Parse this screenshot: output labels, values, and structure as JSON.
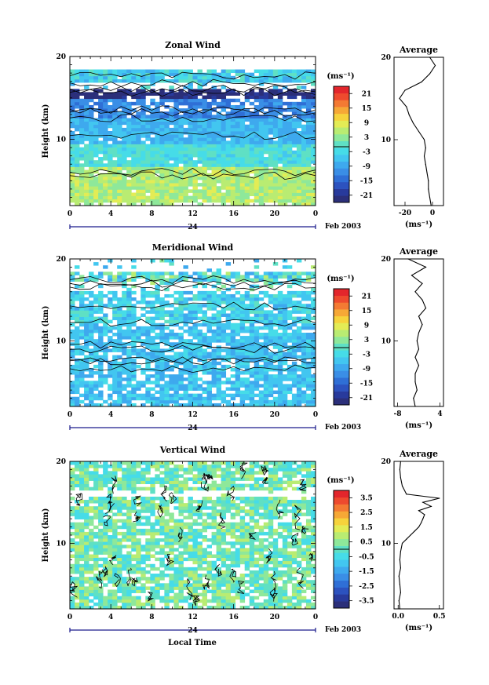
{
  "colors": {
    "scale": [
      "#2b2f7a",
      "#283a9c",
      "#2c52bf",
      "#2f6fd6",
      "#3a8ee6",
      "#3ea9ee",
      "#42c6f0",
      "#46dce8",
      "#5fe0c4",
      "#8ee89a",
      "#b9ec72",
      "#e3ec55",
      "#f6d33c",
      "#f6a836",
      "#f47a33",
      "#ee4a2e",
      "#e3262c"
    ],
    "contour": "#000000",
    "missing": "#ffffff",
    "time_axis": "#1a1a8c"
  },
  "time_axis": {
    "date_text": "Feb 2003",
    "day_label": "24",
    "xlabel": "Local Time"
  },
  "chart_data": [
    {
      "type": "heatmap",
      "title": "Zonal Wind",
      "ylabel": "Height (km)",
      "x": [
        0,
        4,
        8,
        12,
        16,
        20,
        0
      ],
      "xlim": [
        0,
        24
      ],
      "ylim": [
        2,
        20
      ],
      "yticks": [
        10,
        20
      ],
      "colorbar": {
        "unit_label": "(ms⁻¹)",
        "ticks": [
          "21",
          "15",
          "9",
          "3",
          "-3",
          "-9",
          "-15",
          "-21"
        ],
        "range": [
          -24,
          24
        ]
      },
      "profile": {
        "title": "Average",
        "xlabel": "(ms⁻¹)",
        "xticks": [
          "-20",
          "0"
        ],
        "xtick_values": [
          -20,
          0
        ],
        "xlim": [
          -28,
          8
        ],
        "heights": [
          2,
          3,
          4,
          5,
          6,
          7,
          8,
          9,
          10,
          11,
          12,
          13,
          14,
          15,
          16,
          17,
          18,
          19,
          20
        ],
        "values": [
          -1,
          -2,
          -3,
          -3,
          -4,
          -5,
          -6,
          -5,
          -6,
          -10,
          -14,
          -17,
          -19,
          -24,
          -20,
          -8,
          -2,
          2,
          -2
        ]
      }
    },
    {
      "type": "heatmap",
      "title": "Meridional Wind",
      "ylabel": "Height (km)",
      "x": [
        0,
        4,
        8,
        12,
        16,
        20,
        0
      ],
      "xlim": [
        0,
        24
      ],
      "ylim": [
        2,
        20
      ],
      "yticks": [
        10,
        20
      ],
      "colorbar": {
        "unit_label": "(ms⁻¹)",
        "ticks": [
          "21",
          "15",
          "9",
          "3",
          "-3",
          "-9",
          "-15",
          "-21"
        ],
        "range": [
          -24,
          24
        ]
      },
      "profile": {
        "title": "Average",
        "xlabel": "(ms⁻¹)",
        "xticks": [
          "-8",
          "4"
        ],
        "xtick_values": [
          -8,
          4
        ],
        "xlim": [
          -9,
          5
        ],
        "heights": [
          2,
          3,
          4,
          5,
          6,
          7,
          8,
          9,
          10,
          11,
          12,
          13,
          14,
          15,
          16,
          17,
          18,
          19,
          20
        ],
        "values": [
          -3,
          -3.5,
          -2.5,
          -3,
          -3,
          -2,
          -3,
          -2,
          -2.5,
          -2,
          -1,
          -2,
          0,
          -1,
          -3,
          -1,
          -4,
          0,
          -5
        ]
      }
    },
    {
      "type": "heatmap",
      "title": "Vertical Wind",
      "ylabel": "Height (km)",
      "x": [
        0,
        4,
        8,
        12,
        16,
        20,
        0
      ],
      "xlim": [
        0,
        24
      ],
      "ylim": [
        2,
        20
      ],
      "yticks": [
        10,
        20
      ],
      "colorbar": {
        "unit_label": "(ms⁻¹)",
        "ticks": [
          "3.5",
          "2.5",
          "1.5",
          "0.5",
          "-0.5",
          "-1.5",
          "-2.5",
          "-3.5"
        ],
        "range": [
          -4,
          4
        ]
      },
      "profile": {
        "title": "Average",
        "xlabel": "(ms⁻¹)",
        "xticks": [
          "0.0",
          "0.5"
        ],
        "xtick_values": [
          0.0,
          0.5
        ],
        "xlim": [
          -0.05,
          0.55
        ],
        "heights": [
          2,
          3,
          4,
          5,
          6,
          7,
          8,
          9,
          10,
          10.5,
          11,
          11.5,
          12,
          12.5,
          13,
          13.5,
          14,
          14.5,
          15,
          15.5,
          16,
          17,
          18,
          19,
          20
        ],
        "values": [
          0.02,
          0.01,
          0.03,
          0.02,
          0.01,
          0.03,
          0.02,
          0.03,
          0.05,
          0.1,
          0.15,
          0.2,
          0.25,
          0.28,
          0.3,
          0.32,
          0.25,
          0.4,
          0.3,
          0.5,
          0.1,
          0.05,
          0.03,
          0.02,
          0.03
        ]
      }
    }
  ]
}
